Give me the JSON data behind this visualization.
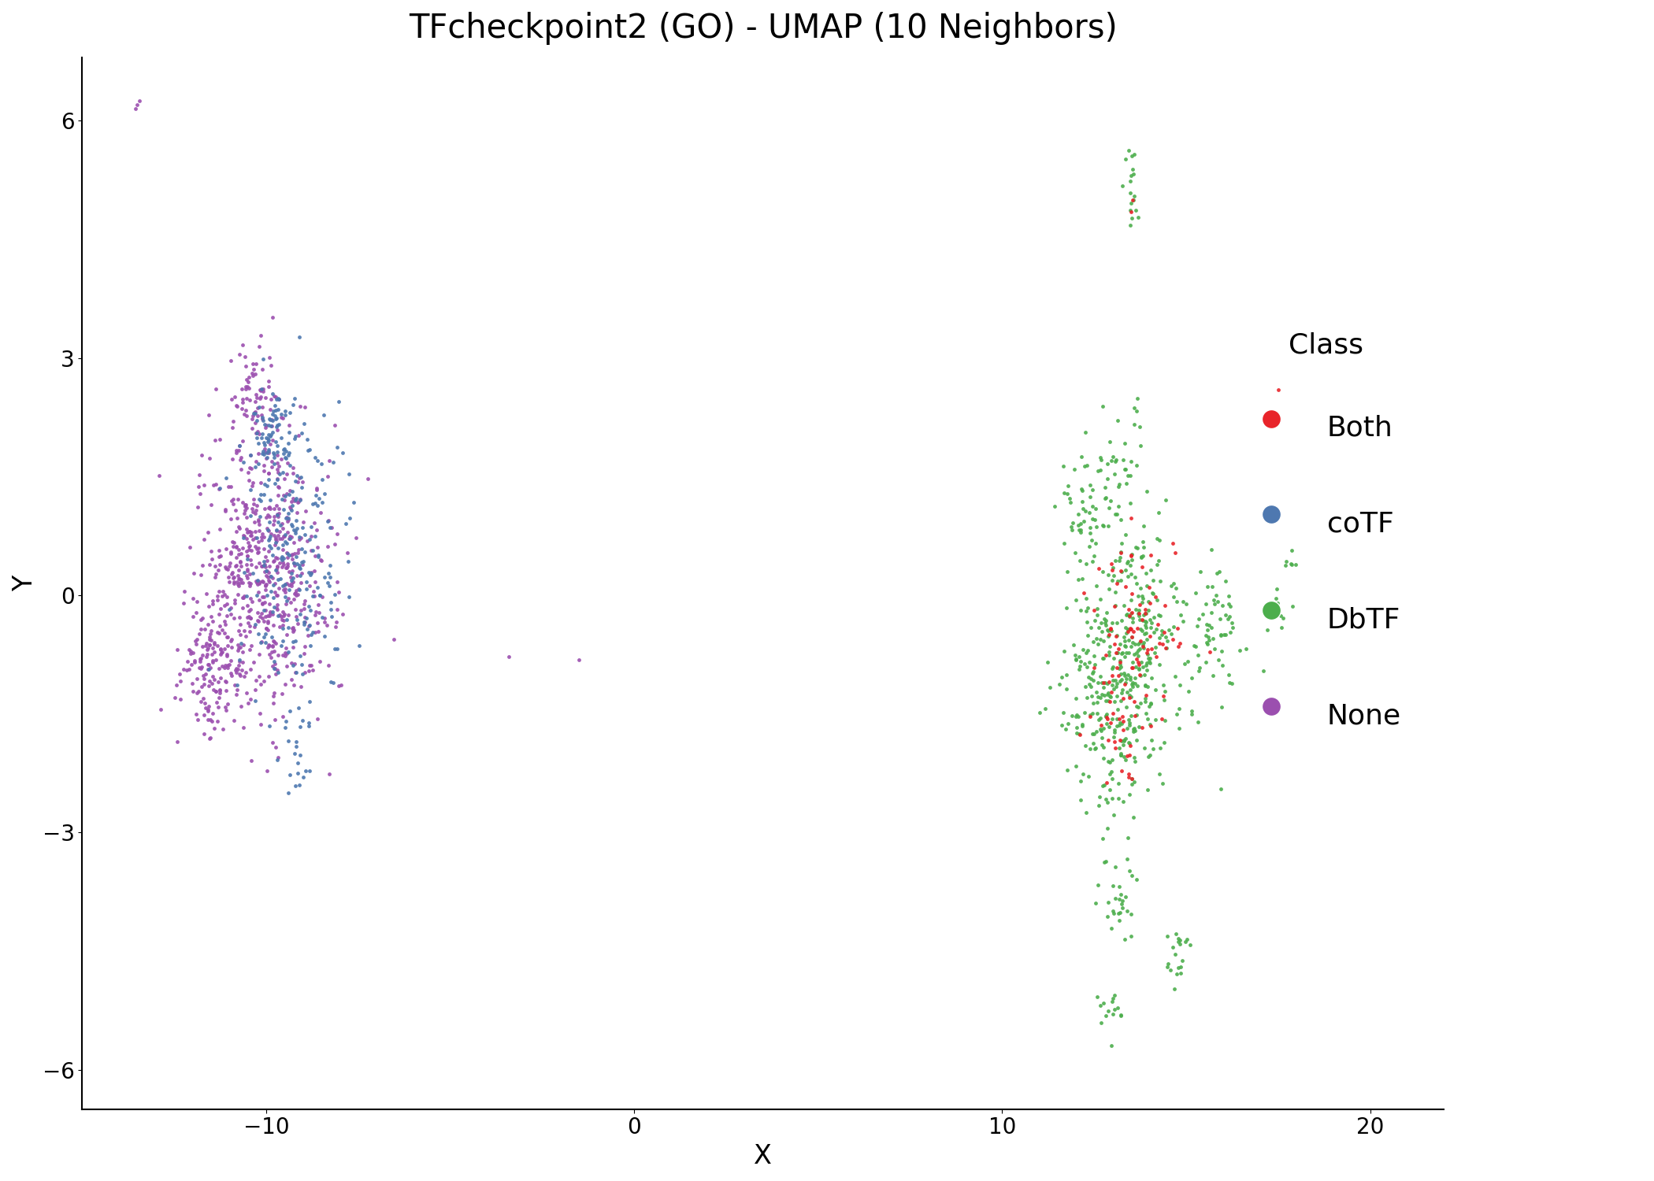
{
  "title": "TFcheckpoint2 (GO) - UMAP (10 Neighbors)",
  "xlabel": "X",
  "ylabel": "Y",
  "xlim": [
    -15,
    22
  ],
  "ylim": [
    -6.5,
    6.8
  ],
  "xticks": [
    -10,
    0,
    10,
    20
  ],
  "yticks": [
    -6,
    -3,
    0,
    3,
    6
  ],
  "classes": [
    "Both",
    "coTF",
    "DbTF",
    "None"
  ],
  "colors": {
    "Both": "#e8242a",
    "coTF": "#4e78b0",
    "DbTF": "#4cae4c",
    "None": "#9b4faf"
  },
  "point_size": 12,
  "alpha": 0.9,
  "title_fontsize": 30,
  "label_fontsize": 24,
  "tick_fontsize": 20,
  "legend_title_fontsize": 26,
  "legend_fontsize": 26,
  "legend_marker_size": 300,
  "background_color": "#ffffff"
}
